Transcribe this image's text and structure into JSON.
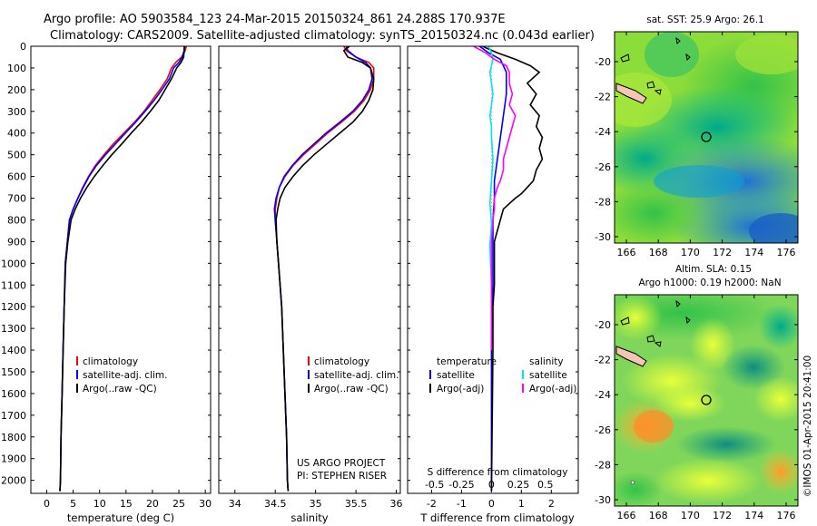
{
  "header": {
    "line1": "Argo profile: AO 5903584_123 24-Mar-2015 20150324_861 24.288S 170.937E",
    "line2": "Climatology: CARS2009. Satellite-adjusted climatology: synTS_20150324.nc (0.043d earlier)"
  },
  "colors": {
    "climatology": "#ff0000",
    "satellite": "#0000ff",
    "argo": "#000000",
    "sat_salinity": "#00e5ee",
    "argo_salinity": "#ff00ff"
  },
  "chart_data": [
    {
      "type": "line",
      "id": "temperature",
      "xlabel": "temperature (deg C)",
      "ylabel": "",
      "xlim": [
        -3,
        31
      ],
      "ylim": [
        2060,
        0
      ],
      "xticks": [
        0,
        5,
        10,
        15,
        20,
        25,
        30
      ],
      "yticks": [
        0,
        100,
        200,
        300,
        400,
        500,
        600,
        700,
        800,
        900,
        1000,
        1100,
        1200,
        1300,
        1400,
        1500,
        1600,
        1700,
        1800,
        1900,
        2000
      ],
      "legend": [
        "climatology",
        "satellite-adj. clim.",
        "Argo(..raw -QC)"
      ],
      "series": [
        {
          "name": "climatology",
          "color": "red",
          "x": [
            26.4,
            26.2,
            25.5,
            24.4,
            23.6,
            22.8,
            21.4,
            19.9,
            18.4,
            16.6,
            14.6,
            12.6,
            10.8,
            9.2,
            7.9,
            6.8,
            5.9,
            5.0,
            4.3,
            3.9,
            3.5,
            3.3,
            3.1,
            2.9,
            2.7,
            2.6,
            2.5
          ],
          "y": [
            0,
            20,
            50,
            75,
            100,
            150,
            200,
            250,
            300,
            350,
            400,
            450,
            500,
            550,
            600,
            650,
            700,
            750,
            800,
            900,
            1000,
            1200,
            1400,
            1600,
            1800,
            2000,
            2050
          ]
        },
        {
          "name": "satellite-adj. clim.",
          "color": "blue",
          "x": [
            26.0,
            26.0,
            25.6,
            25.0,
            24.0,
            23.2,
            21.8,
            20.3,
            18.6,
            16.8,
            14.9,
            13.0,
            11.1,
            9.4,
            8.0,
            6.9,
            5.9,
            5.0,
            4.3,
            3.9,
            3.5,
            3.3,
            3.1,
            2.9,
            2.7,
            2.6,
            2.5
          ],
          "y": [
            0,
            20,
            50,
            75,
            100,
            150,
            200,
            250,
            300,
            350,
            400,
            450,
            500,
            550,
            600,
            650,
            700,
            750,
            800,
            900,
            1000,
            1200,
            1400,
            1600,
            1800,
            2000,
            2050
          ]
        },
        {
          "name": "Argo(..raw -QC)",
          "color": "black",
          "x": [
            26.1,
            26.0,
            25.9,
            25.4,
            24.6,
            23.6,
            22.4,
            21.2,
            19.6,
            17.9,
            16.0,
            14.2,
            12.3,
            10.6,
            9.0,
            7.6,
            6.4,
            5.4,
            4.6,
            4.0,
            3.6,
            3.3,
            3.1,
            2.9,
            2.7,
            2.6,
            2.5
          ],
          "y": [
            0,
            20,
            50,
            75,
            100,
            150,
            200,
            250,
            300,
            350,
            400,
            450,
            500,
            550,
            600,
            650,
            700,
            750,
            800,
            900,
            1000,
            1200,
            1400,
            1600,
            1800,
            2000,
            2050
          ]
        }
      ]
    },
    {
      "type": "line",
      "id": "salinity",
      "xlabel": "salinity",
      "xlim": [
        33.8,
        36.05
      ],
      "ylim": [
        2060,
        0
      ],
      "xticks": [
        34,
        34.5,
        35,
        35.5,
        36
      ],
      "legend": [
        "climatology",
        "satellite-adj. clim.",
        "Argo(..raw -QC)"
      ],
      "annotation": [
        "US ARGO PROJECT",
        "PI: STEPHEN RISER"
      ],
      "series": [
        {
          "name": "climatology",
          "color": "red",
          "x": [
            35.35,
            35.38,
            35.5,
            35.66,
            35.72,
            35.72,
            35.68,
            35.6,
            35.48,
            35.32,
            35.15,
            35.0,
            34.85,
            34.72,
            34.62,
            34.55,
            34.52,
            34.5,
            34.5,
            34.52,
            34.54,
            34.58,
            34.6,
            34.62,
            34.64,
            34.65,
            34.66
          ],
          "y": [
            0,
            20,
            50,
            75,
            100,
            150,
            200,
            250,
            300,
            350,
            400,
            450,
            500,
            550,
            600,
            650,
            700,
            750,
            800,
            900,
            1000,
            1200,
            1400,
            1600,
            1800,
            2000,
            2050
          ]
        },
        {
          "name": "satellite-adj. clim.",
          "color": "blue",
          "x": [
            35.38,
            35.4,
            35.5,
            35.62,
            35.68,
            35.7,
            35.66,
            35.58,
            35.46,
            35.3,
            35.13,
            34.98,
            34.83,
            34.71,
            34.61,
            34.55,
            34.51,
            34.49,
            34.5,
            34.52,
            34.54,
            34.58,
            34.6,
            34.62,
            34.64,
            34.65,
            34.66
          ],
          "y": [
            0,
            20,
            50,
            75,
            100,
            150,
            200,
            250,
            300,
            350,
            400,
            450,
            500,
            550,
            600,
            650,
            700,
            750,
            800,
            900,
            1000,
            1200,
            1400,
            1600,
            1800,
            2000,
            2050
          ]
        },
        {
          "name": "Argo(..raw -QC)",
          "color": "black",
          "x": [
            35.42,
            35.35,
            35.4,
            35.58,
            35.68,
            35.72,
            35.71,
            35.66,
            35.58,
            35.46,
            35.3,
            35.14,
            34.98,
            34.84,
            34.72,
            34.62,
            34.56,
            34.53,
            34.51,
            34.52,
            34.54,
            34.58,
            34.6,
            34.62,
            34.64,
            34.65,
            34.66
          ],
          "y": [
            0,
            20,
            50,
            75,
            100,
            150,
            200,
            250,
            300,
            350,
            400,
            450,
            500,
            550,
            600,
            650,
            700,
            750,
            800,
            900,
            1000,
            1200,
            1400,
            1600,
            1800,
            2000,
            2050
          ]
        }
      ]
    },
    {
      "type": "line",
      "id": "difference",
      "xlabel": "T difference from climatology",
      "xlabel_top": "S difference from climatology",
      "xlim": [
        -2.8,
        2.9
      ],
      "ylim": [
        2060,
        0
      ],
      "xticks": [
        -2,
        -1,
        0,
        1,
        2
      ],
      "top_ticks": [
        "-0.5",
        "-0.25",
        "0",
        "0.25",
        "0.5"
      ],
      "top_tick_pos": [
        -1.9,
        -1.0,
        0,
        0.9,
        1.8
      ],
      "legend_left": [
        "temperature",
        "satellite",
        "Argo(-adj)"
      ],
      "legend_right": [
        "salinity",
        "satellite",
        "Argo(-adj)"
      ],
      "series": [
        {
          "name": "satellite",
          "group": "temperature",
          "color": "blue",
          "x": [
            -0.4,
            -0.1,
            0.3,
            0.4,
            0.5,
            0.5,
            0.5,
            0.45,
            0.4,
            0.35,
            0.3,
            0.25,
            0.2,
            0.15,
            0.1,
            0.1,
            0.05,
            0.05,
            0.05,
            0.05,
            0.02,
            0.0,
            0.0,
            0.0,
            0.0
          ],
          "y": [
            0,
            30,
            60,
            90,
            120,
            170,
            220,
            270,
            320,
            370,
            420,
            470,
            520,
            570,
            620,
            700,
            800,
            900,
            1000,
            1100,
            1200,
            1400,
            1600,
            1800,
            2050
          ]
        },
        {
          "name": "Argo(-adj)",
          "group": "temperature",
          "color": "black",
          "x": [
            -0.3,
            0.2,
            0.8,
            1.3,
            1.6,
            1.2,
            1.5,
            1.3,
            1.6,
            1.5,
            1.7,
            1.6,
            1.7,
            1.5,
            1.4,
            1.2,
            1.0,
            0.8,
            0.4,
            0.3,
            0.2,
            0.1,
            0.1,
            0.1,
            0.05,
            0.05,
            0.0
          ],
          "y": [
            0,
            30,
            60,
            90,
            120,
            170,
            220,
            270,
            320,
            370,
            420,
            470,
            520,
            570,
            620,
            650,
            680,
            700,
            750,
            800,
            850,
            900,
            1000,
            1100,
            1200,
            1400,
            2050
          ]
        },
        {
          "name": "satellite",
          "group": "salinity",
          "color": "cyan",
          "x": [
            -0.1,
            0.0,
            0.05,
            0.0,
            -0.05,
            0.0,
            0.05,
            0.0,
            -0.05,
            0.0,
            0.0,
            0.05,
            0.0,
            -0.05,
            0.0,
            -0.05,
            0.0
          ],
          "y": [
            0,
            30,
            60,
            90,
            120,
            170,
            220,
            270,
            320,
            370,
            420,
            520,
            620,
            720,
            820,
            920,
            1100
          ]
        },
        {
          "name": "Argo(-adj)",
          "group": "salinity",
          "color": "magenta",
          "x": [
            -0.6,
            -0.2,
            0.1,
            0.5,
            0.6,
            0.6,
            0.7,
            0.6,
            0.8,
            0.7,
            0.6,
            0.5,
            0.4,
            0.4,
            0.3,
            0.2,
            0.1,
            0.1,
            0.05,
            0.0,
            0.0,
            0.0,
            0.0
          ],
          "y": [
            0,
            30,
            60,
            90,
            120,
            170,
            220,
            270,
            320,
            370,
            420,
            470,
            520,
            570,
            620,
            650,
            700,
            750,
            800,
            900,
            1000,
            1100,
            1400
          ]
        }
      ]
    }
  ],
  "maps": [
    {
      "id": "sst_map",
      "title": "sat. SST: 25.9  Argo: 26.1",
      "title2": "",
      "xticks": [
        "166",
        "168",
        "170",
        "172",
        "174",
        "176"
      ],
      "yticks": [
        "-20",
        "-22",
        "-24",
        "-26",
        "-28",
        "-30"
      ]
    },
    {
      "id": "sla_map",
      "title": "Altim. SLA: 0.15",
      "title2": "Argo h1000: 0.19 h2000: NaN",
      "xticks": [
        "166",
        "168",
        "170",
        "172",
        "174",
        "176"
      ],
      "yticks": [
        "-20",
        "-22",
        "-24",
        "-26",
        "-28",
        "-30"
      ]
    }
  ],
  "credit": "©IMOS 01-Apr-2015 20:41:00"
}
